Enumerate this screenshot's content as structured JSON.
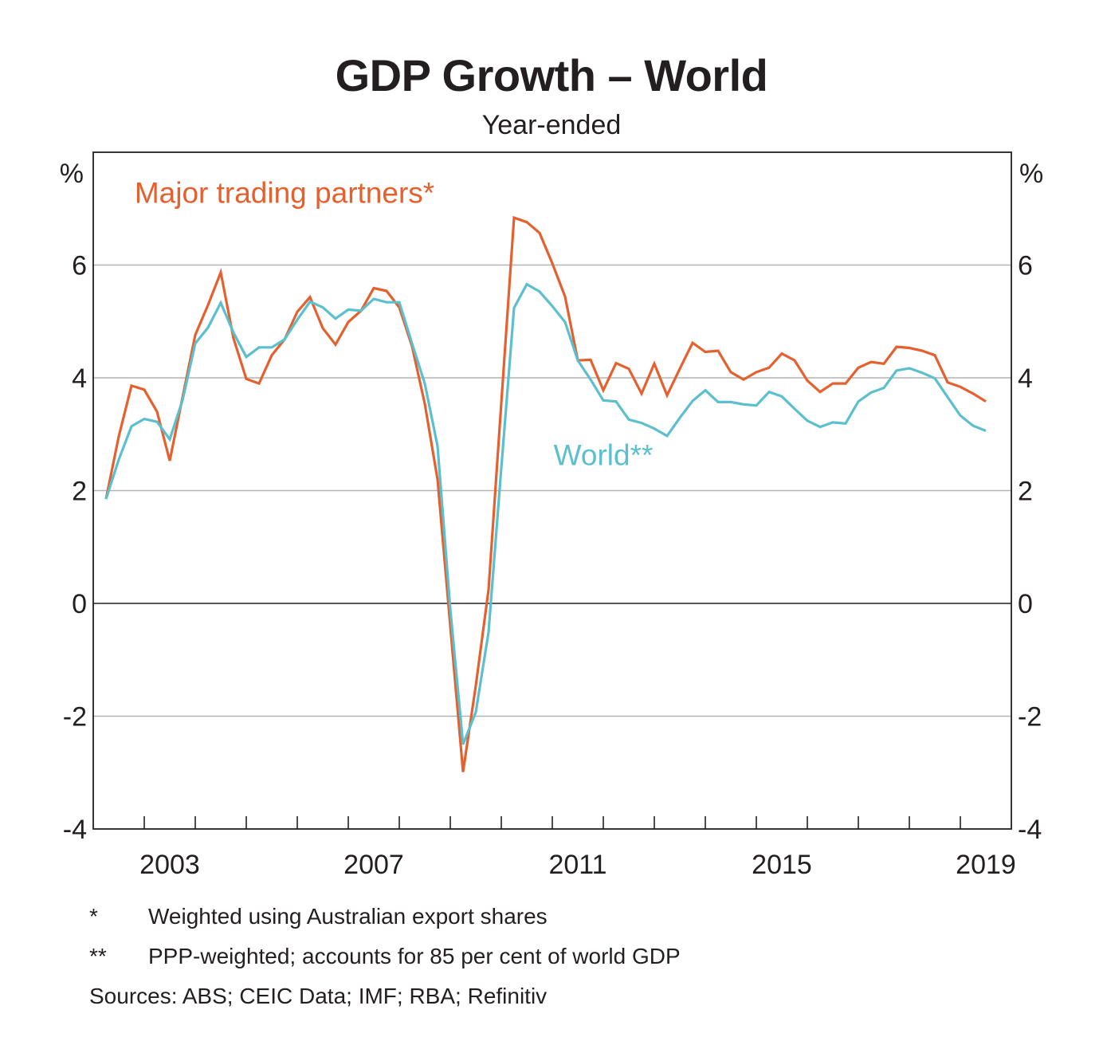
{
  "chart_data": {
    "type": "line",
    "title": "GDP Growth – World",
    "subtitle": "Year-ended",
    "xlabel": "",
    "ylabel_left": "%",
    "ylabel_right": "%",
    "ylim": [
      -4,
      8
    ],
    "yticks": [
      -4,
      -2,
      0,
      2,
      4,
      6
    ],
    "ytick_labels": [
      "-4",
      "-2",
      "0",
      "2",
      "4",
      "6"
    ],
    "xlim": [
      "2002",
      "2019"
    ],
    "x_frequency": "quarterly",
    "x_start": "2002 Q1",
    "x_end": "2019 Q2",
    "xtick_labels": [
      "2003",
      "2007",
      "2011",
      "2015",
      "2019"
    ],
    "xtick_label_years": [
      2003,
      2007,
      2011,
      2015,
      2019
    ],
    "year_range": [
      2002,
      2019
    ],
    "grid": true,
    "series": [
      {
        "name": "Major trading partners*",
        "color": "#e4612f",
        "values": [
          1.85,
          2.96,
          3.86,
          3.79,
          3.4,
          2.53,
          3.65,
          4.76,
          5.29,
          5.87,
          4.7,
          3.98,
          3.9,
          4.4,
          4.68,
          5.17,
          5.43,
          4.88,
          4.59,
          4.99,
          5.19,
          5.59,
          5.54,
          5.25,
          4.56,
          3.54,
          2.2,
          -0.4,
          -2.99,
          -1.46,
          0.24,
          3.55,
          6.84,
          6.76,
          6.57,
          6.03,
          5.44,
          4.31,
          4.32,
          3.78,
          4.26,
          4.16,
          3.72,
          4.25,
          3.69,
          4.16,
          4.62,
          4.46,
          4.48,
          4.1,
          3.97,
          4.1,
          4.18,
          4.43,
          4.31,
          3.95,
          3.75,
          3.9,
          3.9,
          4.18,
          4.28,
          4.25,
          4.55,
          4.53,
          4.48,
          4.4,
          3.92,
          3.84,
          3.72,
          3.58
        ]
      },
      {
        "name": "World**",
        "color": "#5bbfcd",
        "values": [
          1.85,
          2.55,
          3.14,
          3.27,
          3.22,
          2.91,
          3.6,
          4.61,
          4.89,
          5.33,
          4.8,
          4.37,
          4.54,
          4.54,
          4.68,
          5.03,
          5.35,
          5.25,
          5.05,
          5.21,
          5.19,
          5.4,
          5.34,
          5.34,
          4.61,
          3.9,
          2.79,
          -0.1,
          -2.5,
          -1.93,
          -0.51,
          2.4,
          5.24,
          5.66,
          5.53,
          5.27,
          4.99,
          4.31,
          3.97,
          3.6,
          3.58,
          3.26,
          3.2,
          3.1,
          2.97,
          3.29,
          3.59,
          3.78,
          3.57,
          3.57,
          3.53,
          3.51,
          3.75,
          3.67,
          3.45,
          3.24,
          3.13,
          3.21,
          3.19,
          3.58,
          3.74,
          3.82,
          4.13,
          4.17,
          4.09,
          3.99,
          3.66,
          3.33,
          3.15,
          3.06
        ]
      }
    ],
    "annotations": [
      {
        "text": "Major trading partners*",
        "series": 0,
        "anchor": {
          "x_index": 14,
          "y": 7.1
        }
      },
      {
        "text": "World**",
        "series": 1,
        "anchor": {
          "x_index": 39,
          "y": 2.45
        }
      }
    ],
    "legend": "inline-labels"
  },
  "notes": [
    {
      "mark": "*",
      "text": "Weighted using Australian export shares"
    },
    {
      "mark": "**",
      "text": "PPP-weighted; accounts for 85 per cent of world GDP"
    }
  ],
  "sources": "Sources: ABS; CEIC Data; IMF; RBA; Refinitiv"
}
